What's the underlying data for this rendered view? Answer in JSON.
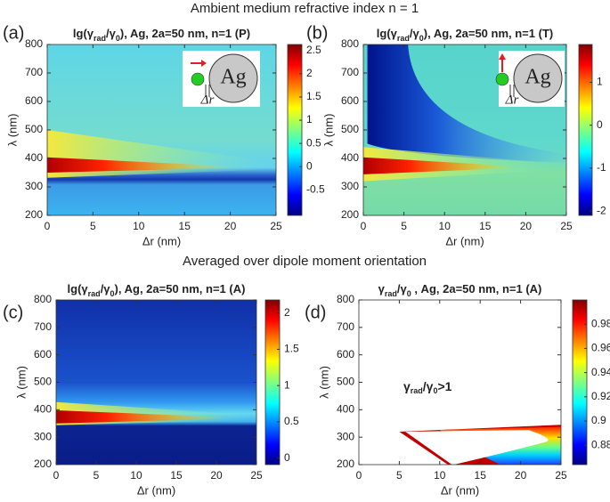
{
  "header": "Ambient medium refractive index n = 1",
  "subheader": "Averaged over dipole moment orientation",
  "chart_data": [
    {
      "type": "heatmap",
      "panel_label": "(a)",
      "title": [
        {
          "text": "lg(γ"
        },
        {
          "text": "rad",
          "sub": true
        },
        {
          "text": "/γ"
        },
        {
          "text": "0",
          "sub": true
        },
        {
          "text": "), Ag, 2a=50 nm, n=1 (P)"
        }
      ],
      "xlabel": "Δr (nm)",
      "ylabel": "λ (nm)",
      "xlim": [
        0,
        25
      ],
      "xticks": [
        0,
        5,
        10,
        15,
        20,
        25
      ],
      "ylim": [
        200,
        800
      ],
      "yticks": [
        200,
        300,
        400,
        500,
        600,
        700,
        800
      ],
      "clim": [
        -1.05,
        2.63
      ],
      "cticks": [
        -0.5,
        0,
        0.5,
        1,
        1.5,
        2,
        2.5
      ],
      "inset": {
        "particle": "Ag",
        "gap": "Δr",
        "arrow": "right"
      }
    },
    {
      "type": "heatmap",
      "panel_label": "(b)",
      "title": [
        {
          "text": "lg(γ"
        },
        {
          "text": "rad",
          "sub": true
        },
        {
          "text": "/γ"
        },
        {
          "text": "0",
          "sub": true
        },
        {
          "text": "), Ag, 2a=50 nm, n=1 (T)"
        }
      ],
      "xlabel": "Δr (nm)",
      "ylabel": "λ (nm)",
      "xlim": [
        0,
        25
      ],
      "xticks": [
        0,
        5,
        10,
        15,
        20,
        25
      ],
      "ylim": [
        200,
        800
      ],
      "yticks": [
        200,
        300,
        400,
        500,
        600,
        700,
        800
      ],
      "clim": [
        -2.1,
        1.88
      ],
      "cticks": [
        -2,
        -1,
        0,
        1
      ],
      "inset": {
        "particle": "Ag",
        "gap": "Δr",
        "arrow": "up"
      }
    },
    {
      "type": "heatmap",
      "panel_label": "(c)",
      "title": [
        {
          "text": "lg(γ"
        },
        {
          "text": "rad",
          "sub": true
        },
        {
          "text": "/γ"
        },
        {
          "text": "0",
          "sub": true
        },
        {
          "text": "), Ag, 2a=50 nm, n=1 (A)"
        }
      ],
      "xlabel": "Δr (nm)",
      "ylabel": "λ (nm)",
      "xlim": [
        0,
        25
      ],
      "xticks": [
        0,
        5,
        10,
        15,
        20,
        25
      ],
      "ylim": [
        200,
        800
      ],
      "yticks": [
        200,
        300,
        400,
        500,
        600,
        700,
        800
      ],
      "clim": [
        -0.09,
        2.18
      ],
      "cticks": [
        0,
        0.5,
        1,
        1.5,
        2
      ]
    },
    {
      "type": "heatmap",
      "panel_label": "(d)",
      "title": [
        {
          "text": "γ"
        },
        {
          "text": "rad",
          "sub": true
        },
        {
          "text": "/γ"
        },
        {
          "text": "0",
          "sub": true
        },
        {
          "text": " , Ag, 2a=50 nm, n=1 (A)"
        }
      ],
      "xlabel": "Δr (nm)",
      "ylabel": "λ (nm)",
      "xlim": [
        0,
        25
      ],
      "xticks": [
        0,
        5,
        10,
        15,
        20,
        25
      ],
      "ylim": [
        200,
        800
      ],
      "yticks": [
        200,
        300,
        400,
        500,
        600,
        700,
        800
      ],
      "clim": [
        0.864,
        1.0
      ],
      "cticks": [
        0.88,
        0.9,
        0.92,
        0.94,
        0.96,
        0.98
      ],
      "annotation": [
        {
          "text": "γ"
        },
        {
          "text": "rad",
          "sub": true
        },
        {
          "text": "/γ"
        },
        {
          "text": "0",
          "sub": true
        },
        {
          "text": ">1"
        }
      ]
    }
  ]
}
